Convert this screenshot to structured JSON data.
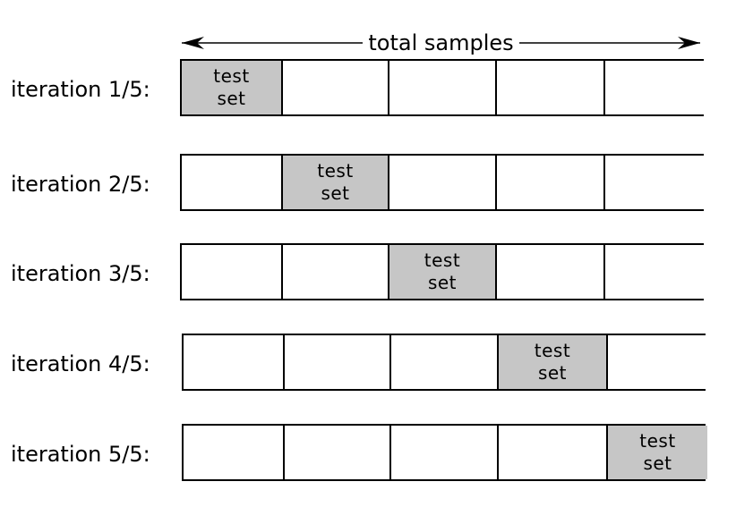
{
  "diagram": {
    "header": {
      "label": "total samples"
    },
    "fold_label": "test\nset",
    "colors": {
      "test_fill": "#c6c6c6",
      "train_fill": "#ffffff",
      "border": "#000000"
    },
    "iterations": [
      {
        "label": "iteration 1/5:",
        "test_fold": 1
      },
      {
        "label": "iteration 2/5:",
        "test_fold": 2
      },
      {
        "label": "iteration 3/5:",
        "test_fold": 3
      },
      {
        "label": "iteration 4/5:",
        "test_fold": 4
      },
      {
        "label": "iteration 5/5:",
        "test_fold": 5
      }
    ]
  }
}
